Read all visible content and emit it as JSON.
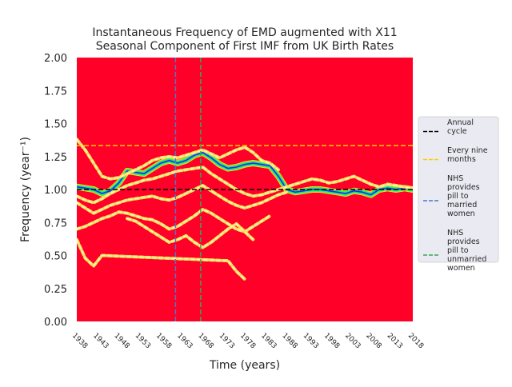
{
  "chart_data": {
    "type": "heatmap",
    "title_lines": [
      "Instantaneous Frequency of EMD augmented with X11",
      "Seasonal Component of First IMF from UK Birth Rates"
    ],
    "xlabel": "Time (years)",
    "ylabel": "Frequency (year⁻¹)",
    "xlim": [
      1938,
      2018
    ],
    "ylim": [
      0,
      2
    ],
    "x_ticks": [
      "1938",
      "1943",
      "1948",
      "1953",
      "1958",
      "1963",
      "1968",
      "1973",
      "1978",
      "1983",
      "1988",
      "1993",
      "1998",
      "2003",
      "2008",
      "2013",
      "2018"
    ],
    "y_ticks": [
      "0.00",
      "0.25",
      "0.50",
      "0.75",
      "1.00",
      "1.25",
      "1.50",
      "1.75",
      "2.00"
    ],
    "background_color": "#ff0028",
    "reference_lines": [
      {
        "orientation": "horizontal",
        "value": 1.0,
        "color": "#000000",
        "label": "Annual cycle"
      },
      {
        "orientation": "horizontal",
        "value": 1.3333,
        "color": "#ffcc00",
        "label": "Every nine months"
      },
      {
        "orientation": "vertical",
        "value": 1961.5,
        "color": "#4878cf",
        "label": "NHS provides pill to married women"
      },
      {
        "orientation": "vertical",
        "value": 1967.5,
        "color": "#3aa55a",
        "label": "NHS provides pill to unmarried women"
      }
    ],
    "legend_position": "right",
    "ridges": [
      {
        "name": "main",
        "x": [
          1938,
          1940,
          1942,
          1944,
          1946,
          1948,
          1950,
          1952,
          1954,
          1956,
          1958,
          1960,
          1962,
          1964,
          1966,
          1968,
          1970,
          1972,
          1974,
          1976,
          1978,
          1980,
          1982,
          1984,
          1986,
          1988,
          1990,
          1992,
          1994,
          1996,
          1998,
          2000,
          2002,
          2004,
          2006,
          2008,
          2010,
          2012,
          2014,
          2016,
          2018
        ],
        "y": [
          1.02,
          1.01,
          1.0,
          0.97,
          0.99,
          1.05,
          1.14,
          1.13,
          1.12,
          1.16,
          1.2,
          1.22,
          1.2,
          1.22,
          1.26,
          1.28,
          1.24,
          1.19,
          1.16,
          1.17,
          1.19,
          1.2,
          1.19,
          1.18,
          1.1,
          1.0,
          0.98,
          0.99,
          1.0,
          1.0,
          0.99,
          0.98,
          0.97,
          0.99,
          0.98,
          0.96,
          1.0,
          1.01,
          1.0,
          1.01,
          1.0
        ]
      },
      {
        "name": "upper",
        "x": [
          1938,
          1940,
          1942,
          1944,
          1946,
          1948,
          1950,
          1952,
          1954,
          1956,
          1958,
          1960,
          1962,
          1964,
          1966,
          1968,
          1970,
          1972,
          1974,
          1976,
          1978,
          1980,
          1982,
          1984,
          1986
        ],
        "y": [
          1.38,
          1.3,
          1.2,
          1.1,
          1.08,
          1.09,
          1.12,
          1.15,
          1.18,
          1.22,
          1.24,
          1.25,
          1.24,
          1.26,
          1.28,
          1.3,
          1.27,
          1.24,
          1.27,
          1.3,
          1.32,
          1.28,
          1.22,
          1.2,
          1.15
        ]
      },
      {
        "name": "middle",
        "x": [
          1938,
          1940,
          1942,
          1944,
          1946,
          1948,
          1950,
          1952,
          1954,
          1956,
          1958,
          1960,
          1962,
          1964,
          1966,
          1968,
          1970,
          1972,
          1974,
          1976,
          1978,
          1980,
          1982,
          1984,
          1986,
          1988,
          1990,
          1992,
          1994,
          1996,
          1998,
          2000,
          2002,
          2004,
          2006,
          2008,
          2010,
          2012,
          2014,
          2016,
          2018
        ],
        "y": [
          0.95,
          0.92,
          0.9,
          0.93,
          0.97,
          1.0,
          1.03,
          1.05,
          1.07,
          1.08,
          1.1,
          1.12,
          1.14,
          1.15,
          1.16,
          1.17,
          1.12,
          1.08,
          1.04,
          1.0,
          0.97,
          0.95,
          0.96,
          0.98,
          1.0,
          1.02,
          1.04,
          1.06,
          1.08,
          1.07,
          1.05,
          1.06,
          1.08,
          1.1,
          1.07,
          1.04,
          1.02,
          1.04,
          1.03,
          1.02,
          1.01
        ]
      },
      {
        "name": "lower-a",
        "x": [
          1938,
          1940,
          1942,
          1944,
          1946,
          1948,
          1950,
          1952,
          1954,
          1956,
          1958,
          1960,
          1962,
          1964,
          1966,
          1968,
          1970,
          1972,
          1974,
          1976,
          1978,
          1980,
          1982,
          1984,
          1986,
          1988
        ],
        "y": [
          0.9,
          0.86,
          0.82,
          0.85,
          0.88,
          0.9,
          0.92,
          0.93,
          0.94,
          0.95,
          0.93,
          0.92,
          0.94,
          0.97,
          1.0,
          1.03,
          0.99,
          0.95,
          0.91,
          0.88,
          0.86,
          0.88,
          0.9,
          0.93,
          0.96,
          0.98
        ]
      },
      {
        "name": "lower-b",
        "x": [
          1938,
          1940,
          1942,
          1944,
          1946,
          1948,
          1950,
          1952,
          1954,
          1956,
          1958,
          1960,
          1962,
          1964,
          1966,
          1968,
          1970,
          1972,
          1974,
          1976,
          1978,
          1980,
          1982,
          1984
        ],
        "y": [
          0.7,
          0.72,
          0.75,
          0.78,
          0.8,
          0.83,
          0.82,
          0.8,
          0.78,
          0.77,
          0.74,
          0.7,
          0.72,
          0.76,
          0.8,
          0.85,
          0.82,
          0.78,
          0.74,
          0.7,
          0.68,
          0.72,
          0.76,
          0.8
        ]
      },
      {
        "name": "lower-c",
        "x": [
          1950,
          1952,
          1954,
          1956,
          1958,
          1960,
          1962,
          1964,
          1966,
          1968,
          1970,
          1972,
          1974,
          1976,
          1978,
          1980
        ],
        "y": [
          0.78,
          0.76,
          0.72,
          0.68,
          0.64,
          0.6,
          0.62,
          0.65,
          0.6,
          0.56,
          0.6,
          0.65,
          0.7,
          0.74,
          0.68,
          0.62
        ]
      },
      {
        "name": "sparse",
        "x": [
          1938,
          1940,
          1942,
          1944,
          1974,
          1976,
          1978
        ],
        "y": [
          0.62,
          0.48,
          0.42,
          0.5,
          0.46,
          0.38,
          0.32
        ]
      }
    ]
  }
}
